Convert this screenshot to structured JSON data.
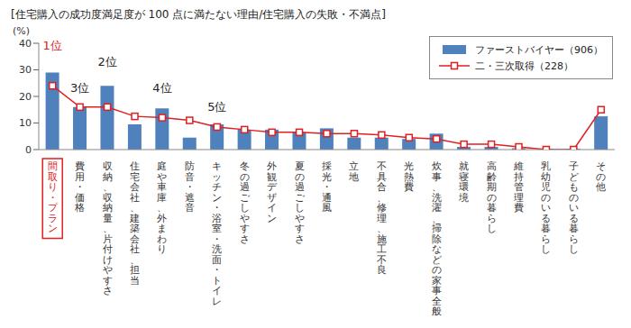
{
  "chart_data": {
    "type": "bar",
    "title": "[住宅購入の成功度満足度が 100 点に満たない理由/住宅購入の失敗・不満点]",
    "y_label": "(%)",
    "categories": [
      "間取り・プラン",
      "費用・価格",
      "収納、収納量、片付けやすさ",
      "住宅会社、建築会社、担当",
      "庭や車庫、外まわり",
      "防音・遮音",
      "キッチン・浴室・洗面・トイレ",
      "冬の過ごしやすさ",
      "外観デザイン",
      "夏の過ごしやすさ",
      "採光・通風",
      "立地",
      "不具合、修理、施工不良",
      "光熱費",
      "炊事、洗濯、掃除などの家事全般",
      "就寝環境",
      "高齢期の暮らし",
      "維持管理費",
      "乳幼児のいる暮らし",
      "子どものいる暮らし",
      "その他"
    ],
    "series": [
      {
        "name": "ファーストバイヤー（906）",
        "type": "bar",
        "color": "#4f81bd",
        "values": [
          29,
          16,
          24,
          9.5,
          15.5,
          4.5,
          9.5,
          7.5,
          7.5,
          6.5,
          8,
          4.5,
          4.5,
          4,
          6,
          1,
          1,
          0.5,
          0.3,
          0.3,
          12.5
        ]
      },
      {
        "name": "二・三次取得（228）",
        "type": "line",
        "color": "#e02020",
        "marker": "square",
        "values": [
          24,
          16,
          16,
          12.5,
          12,
          11,
          8.5,
          7.5,
          6.5,
          6.5,
          6,
          6,
          5.5,
          4.5,
          4,
          2,
          2,
          1,
          0,
          0,
          15
        ]
      }
    ],
    "annotations": [
      {
        "text": "1位",
        "x": "間取り・プラン",
        "y": 36
      },
      {
        "text": "3位",
        "x": "費用・価格",
        "y": 20
      },
      {
        "text": "2位",
        "x": "収納、収納量、片付けやすさ",
        "y": 30
      },
      {
        "text": "4位",
        "x": "庭や車庫、外まわり",
        "y": 20
      },
      {
        "text": "5位",
        "x": "キッチン・浴室・洗面・トイレ",
        "y": 13
      }
    ],
    "ylim": [
      0,
      40
    ],
    "yticks": [
      0,
      10,
      20,
      30,
      40
    ],
    "grid": false
  }
}
